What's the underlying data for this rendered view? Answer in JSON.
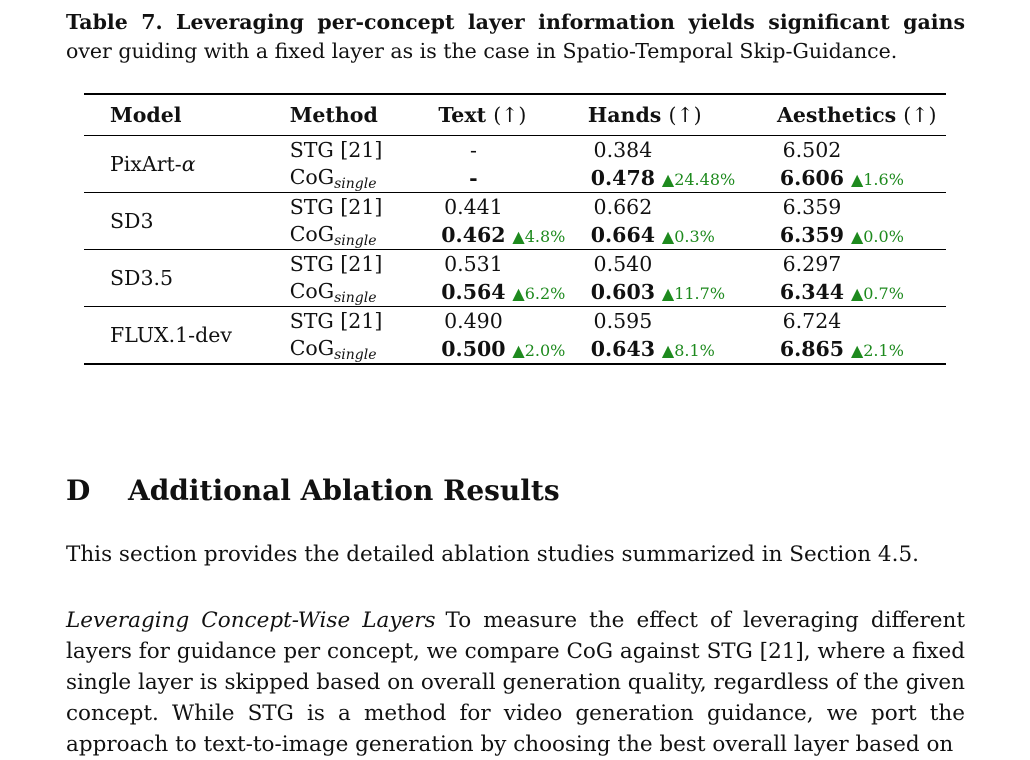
{
  "caption": {
    "bold": "Table 7. Leveraging per-concept layer information yields significant gains",
    "rest": "over guiding with a fixed layer as is the case in Spatio-Temporal Skip-Guidance."
  },
  "table": {
    "headers": {
      "model": "Model",
      "method": "Method",
      "text": "Text",
      "hands": "Hands",
      "aesthetics": "Aesthetics",
      "arrow": "(↑)"
    },
    "method_stg": "STG [21]",
    "method_cog_base": "CoG",
    "method_cog_sub": "single",
    "groups": [
      {
        "model": "PixArt-",
        "model_symbol": "α",
        "stg": {
          "text": "-",
          "hands": "0.384",
          "aes": "6.502"
        },
        "cog": {
          "text": "-",
          "text_gain": "",
          "hands": "0.478",
          "hands_gain": "▲24.48%",
          "aes": "6.606",
          "aes_gain": "▲1.6%"
        }
      },
      {
        "model": "SD3",
        "model_symbol": "",
        "stg": {
          "text": "0.441",
          "hands": "0.662",
          "aes": "6.359"
        },
        "cog": {
          "text": "0.462",
          "text_gain": "▲4.8%",
          "hands": "0.664",
          "hands_gain": "▲0.3%",
          "aes": "6.359",
          "aes_gain": "▲0.0%"
        }
      },
      {
        "model": "SD3.5",
        "model_symbol": "",
        "stg": {
          "text": "0.531",
          "hands": "0.540",
          "aes": "6.297"
        },
        "cog": {
          "text": "0.564",
          "text_gain": "▲6.2%",
          "hands": "0.603",
          "hands_gain": "▲11.7%",
          "aes": "6.344",
          "aes_gain": "▲0.7%"
        }
      },
      {
        "model": "FLUX.1-dev",
        "model_symbol": "",
        "stg": {
          "text": "0.490",
          "hands": "0.595",
          "aes": "6.724"
        },
        "cog": {
          "text": "0.500",
          "text_gain": "▲2.0%",
          "hands": "0.643",
          "hands_gain": "▲8.1%",
          "aes": "6.865",
          "aes_gain": "▲2.1%"
        }
      }
    ]
  },
  "section": {
    "number": "D",
    "title": "Additional Ablation Results"
  },
  "intro": "This section provides the detailed ablation studies summarized in Section 4.5.",
  "paragraph": {
    "lead": "Leveraging Concept-Wise Layers",
    "text": "To measure the effect of leveraging different layers for guidance per concept, we compare CoG against STG [21], where a fixed single layer is skipped based on overall generation quality, regardless of the given concept. While STG is a method for video generation guidance, we port the approach to text-to-image generation by choosing the best overall layer based on"
  },
  "colors": {
    "gain": "#1e8a1e"
  }
}
